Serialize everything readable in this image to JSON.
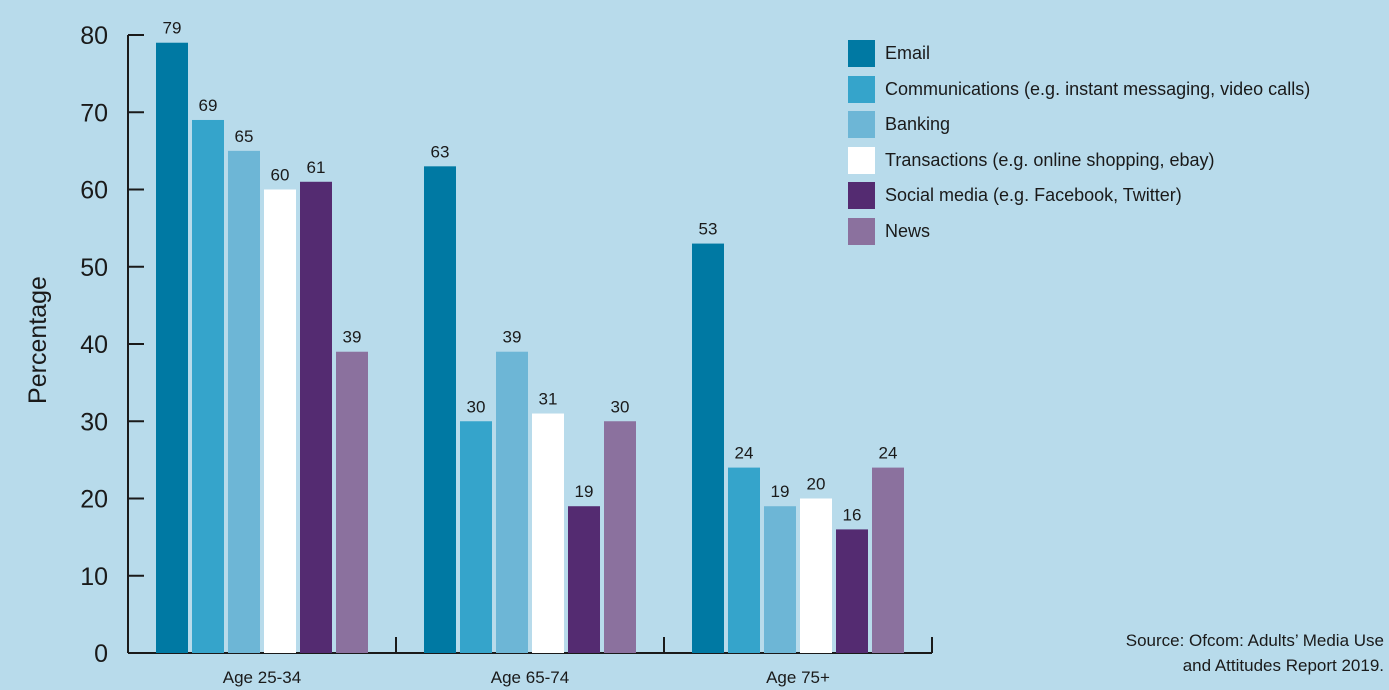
{
  "chart_data": {
    "type": "bar",
    "ylabel": "Percentage",
    "xlabel": "",
    "ylim": [
      0,
      80
    ],
    "yticks": [
      0,
      10,
      20,
      30,
      40,
      50,
      60,
      70,
      80
    ],
    "categories": [
      "Age 25-34",
      "Age 65-74",
      "Age 75+"
    ],
    "series": [
      {
        "name": "Email",
        "color": "#0079a3",
        "values": [
          79,
          63,
          53
        ]
      },
      {
        "name": "Communications (e.g. instant messaging, video calls)",
        "color": "#35a4cb",
        "values": [
          69,
          30,
          24
        ]
      },
      {
        "name": "Banking",
        "color": "#6db6d6",
        "values": [
          65,
          39,
          19
        ]
      },
      {
        "name": "Transactions (e.g. online shopping, ebay)",
        "color": "#ffffff",
        "values": [
          60,
          31,
          20
        ]
      },
      {
        "name": "Social media (e.g. Facebook, Twitter)",
        "color": "#542b71",
        "values": [
          61,
          19,
          16
        ]
      },
      {
        "name": "News",
        "color": "#8b719e",
        "values": [
          39,
          30,
          24
        ]
      }
    ],
    "legend_position": "top-right",
    "grid": false,
    "source": [
      "Source: Ofcom: Adults’ Media Use",
      "and Attitudes Report 2019."
    ]
  }
}
